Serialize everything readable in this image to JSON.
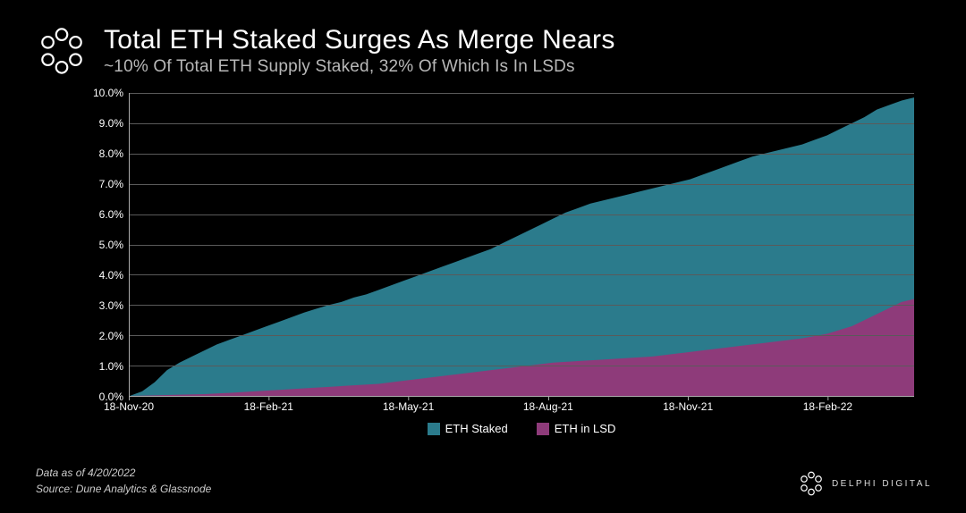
{
  "header": {
    "title": "Total ETH Staked Surges As Merge Nears",
    "subtitle": "~10% Of Total ETH Supply Staked, 32% Of Which Is In LSDs"
  },
  "chart": {
    "type": "area",
    "background_color": "#0e0e0e",
    "grid_color": "#5a5a5a",
    "axis_color": "#aaaaaa",
    "text_color": "#ffffff",
    "label_fontsize": 12,
    "ylim_min": 0,
    "ylim_max": 10,
    "ytick_step": 1,
    "y_format": "percent_one_decimal",
    "y_ticks": [
      "0.0%",
      "1.0%",
      "2.0%",
      "3.0%",
      "4.0%",
      "5.0%",
      "6.0%",
      "7.0%",
      "8.0%",
      "9.0%",
      "10.0%"
    ],
    "x_labels": [
      "18-Nov-20",
      "18-Feb-21",
      "18-May-21",
      "18-Aug-21",
      "18-Nov-21",
      "18-Feb-22"
    ],
    "x_label_positions_pct": [
      0,
      17.8,
      35.6,
      53.4,
      71.2,
      89
    ],
    "series": [
      {
        "name": "ETH Staked",
        "color": "#2b7b8c",
        "points": [
          [
            0,
            0
          ],
          [
            1,
            0.15
          ],
          [
            2,
            0.45
          ],
          [
            3,
            0.85
          ],
          [
            4,
            1.1
          ],
          [
            5,
            1.3
          ],
          [
            6,
            1.5
          ],
          [
            7,
            1.7
          ],
          [
            8,
            1.85
          ],
          [
            9,
            2.0
          ],
          [
            10,
            2.15
          ],
          [
            11,
            2.3
          ],
          [
            12,
            2.45
          ],
          [
            13,
            2.6
          ],
          [
            14,
            2.75
          ],
          [
            15,
            2.88
          ],
          [
            16,
            3.0
          ],
          [
            17,
            3.1
          ],
          [
            18,
            3.25
          ],
          [
            19,
            3.35
          ],
          [
            20,
            3.5
          ],
          [
            21,
            3.65
          ],
          [
            22,
            3.8
          ],
          [
            23,
            3.95
          ],
          [
            24,
            4.1
          ],
          [
            25,
            4.25
          ],
          [
            26,
            4.4
          ],
          [
            27,
            4.55
          ],
          [
            28,
            4.7
          ],
          [
            29,
            4.85
          ],
          [
            30,
            5.05
          ],
          [
            31,
            5.25
          ],
          [
            32,
            5.45
          ],
          [
            33,
            5.65
          ],
          [
            34,
            5.85
          ],
          [
            35,
            6.05
          ],
          [
            36,
            6.2
          ],
          [
            37,
            6.35
          ],
          [
            38,
            6.45
          ],
          [
            39,
            6.55
          ],
          [
            40,
            6.65
          ],
          [
            41,
            6.75
          ],
          [
            42,
            6.85
          ],
          [
            43,
            6.95
          ],
          [
            44,
            7.05
          ],
          [
            45,
            7.15
          ],
          [
            46,
            7.3
          ],
          [
            47,
            7.45
          ],
          [
            48,
            7.6
          ],
          [
            49,
            7.75
          ],
          [
            50,
            7.9
          ],
          [
            51,
            8.0
          ],
          [
            52,
            8.1
          ],
          [
            53,
            8.2
          ],
          [
            54,
            8.3
          ],
          [
            55,
            8.45
          ],
          [
            56,
            8.6
          ],
          [
            57,
            8.8
          ],
          [
            58,
            9.0
          ],
          [
            59,
            9.2
          ],
          [
            60,
            9.45
          ],
          [
            61,
            9.6
          ],
          [
            62,
            9.75
          ],
          [
            63,
            9.85
          ]
        ]
      },
      {
        "name": "ETH in LSD",
        "color": "#8e3b7a",
        "points": [
          [
            0,
            0
          ],
          [
            2,
            0.02
          ],
          [
            4,
            0.04
          ],
          [
            6,
            0.06
          ],
          [
            8,
            0.1
          ],
          [
            10,
            0.15
          ],
          [
            12,
            0.2
          ],
          [
            14,
            0.25
          ],
          [
            16,
            0.3
          ],
          [
            18,
            0.35
          ],
          [
            20,
            0.4
          ],
          [
            22,
            0.5
          ],
          [
            24,
            0.6
          ],
          [
            26,
            0.7
          ],
          [
            28,
            0.8
          ],
          [
            30,
            0.9
          ],
          [
            32,
            1.0
          ],
          [
            34,
            1.1
          ],
          [
            36,
            1.15
          ],
          [
            38,
            1.2
          ],
          [
            40,
            1.25
          ],
          [
            42,
            1.3
          ],
          [
            44,
            1.4
          ],
          [
            46,
            1.5
          ],
          [
            48,
            1.6
          ],
          [
            50,
            1.7
          ],
          [
            52,
            1.8
          ],
          [
            54,
            1.9
          ],
          [
            56,
            2.05
          ],
          [
            58,
            2.3
          ],
          [
            60,
            2.7
          ],
          [
            62,
            3.1
          ],
          [
            63,
            3.2
          ]
        ]
      }
    ],
    "legend": [
      {
        "label": "ETH Staked",
        "color": "#2b7b8c"
      },
      {
        "label": "ETH in LSD",
        "color": "#8e3b7a"
      }
    ]
  },
  "footer": {
    "data_as_of": "Data as of 4/20/2022",
    "source": "Source: Dune Analytics & Glassnode"
  },
  "brand": {
    "name": "DELPHI DIGITAL"
  }
}
